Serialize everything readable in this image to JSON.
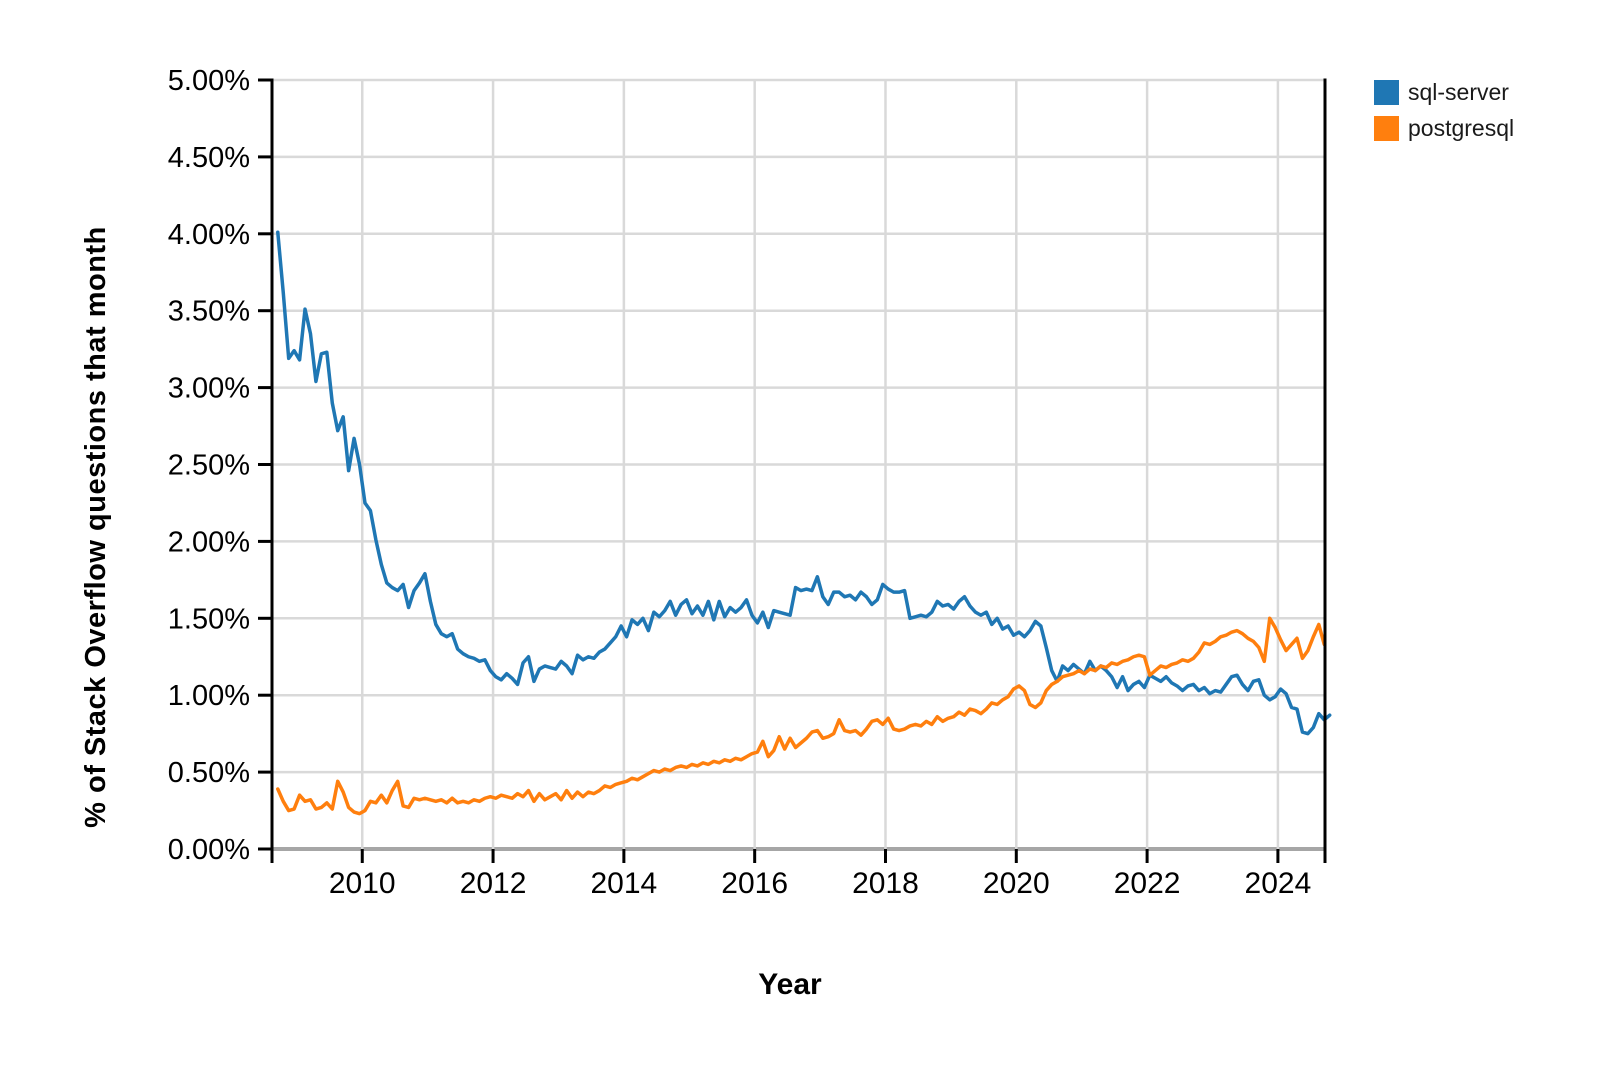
{
  "page": {
    "background": "#ffffff"
  },
  "colors": {
    "grid": "#d9d9d9",
    "zero_line": "#a6a6a6",
    "axis": "#000000",
    "tick_label": "#000000",
    "series_blue": "#1f77b4",
    "series_orange": "#ff7f0e"
  },
  "chart_data": {
    "type": "line",
    "title": "",
    "xlabel": "Year",
    "ylabel": "% of Stack Overflow questions that month",
    "legend_position": "outside-top-right",
    "grid": true,
    "x_start_month": "2008-09",
    "x_domain": [
      2008.62,
      2024.72
    ],
    "y_domain": [
      0,
      5
    ],
    "x_tick_values": [
      2010,
      2012,
      2014,
      2016,
      2018,
      2020,
      2022,
      2024
    ],
    "x_tick_labels": [
      "2010",
      "2012",
      "2014",
      "2016",
      "2018",
      "2020",
      "2022",
      "2024"
    ],
    "y_tick_values": [
      5.0,
      4.5,
      4.0,
      3.5,
      3.0,
      2.5,
      2.0,
      1.5,
      1.0,
      0.5,
      0.0
    ],
    "y_tick_labels": [
      "5.00%",
      "4.50%",
      "4.00%",
      "3.50%",
      "3.00%",
      "2.50%",
      "2.00%",
      "1.50%",
      "1.00%",
      "0.50%",
      "0.00%"
    ],
    "series": [
      {
        "name": "sql-server",
        "color": "#1f77b4",
        "values": [
          4.01,
          3.62,
          3.19,
          3.24,
          3.18,
          3.51,
          3.35,
          3.04,
          3.22,
          3.23,
          2.9,
          2.72,
          2.81,
          2.46,
          2.67,
          2.5,
          2.25,
          2.2,
          2.01,
          1.85,
          1.73,
          1.7,
          1.68,
          1.72,
          1.57,
          1.68,
          1.73,
          1.79,
          1.61,
          1.46,
          1.4,
          1.38,
          1.4,
          1.3,
          1.27,
          1.25,
          1.24,
          1.22,
          1.23,
          1.16,
          1.12,
          1.1,
          1.14,
          1.11,
          1.07,
          1.21,
          1.25,
          1.09,
          1.17,
          1.19,
          1.18,
          1.17,
          1.22,
          1.19,
          1.14,
          1.26,
          1.23,
          1.25,
          1.24,
          1.28,
          1.3,
          1.34,
          1.38,
          1.45,
          1.38,
          1.49,
          1.46,
          1.5,
          1.42,
          1.54,
          1.51,
          1.55,
          1.61,
          1.52,
          1.59,
          1.62,
          1.53,
          1.58,
          1.52,
          1.61,
          1.49,
          1.61,
          1.51,
          1.57,
          1.54,
          1.57,
          1.62,
          1.52,
          1.47,
          1.54,
          1.44,
          1.55,
          1.54,
          1.53,
          1.52,
          1.7,
          1.68,
          1.69,
          1.68,
          1.77,
          1.64,
          1.59,
          1.67,
          1.67,
          1.64,
          1.65,
          1.62,
          1.67,
          1.64,
          1.59,
          1.62,
          1.72,
          1.69,
          1.67,
          1.67,
          1.68,
          1.5,
          1.51,
          1.52,
          1.51,
          1.54,
          1.61,
          1.58,
          1.59,
          1.56,
          1.61,
          1.64,
          1.58,
          1.54,
          1.52,
          1.54,
          1.46,
          1.5,
          1.43,
          1.45,
          1.39,
          1.41,
          1.38,
          1.42,
          1.48,
          1.45,
          1.31,
          1.16,
          1.09,
          1.19,
          1.16,
          1.2,
          1.17,
          1.14,
          1.22,
          1.16,
          1.19,
          1.16,
          1.12,
          1.05,
          1.12,
          1.03,
          1.07,
          1.09,
          1.05,
          1.13,
          1.11,
          1.09,
          1.12,
          1.08,
          1.06,
          1.03,
          1.06,
          1.07,
          1.03,
          1.05,
          1.01,
          1.03,
          1.02,
          1.07,
          1.12,
          1.13,
          1.07,
          1.03,
          1.09,
          1.1,
          1.0,
          0.97,
          0.99,
          1.04,
          1.01,
          0.92,
          0.91,
          0.76,
          0.75,
          0.79,
          0.88,
          0.84,
          0.87
        ]
      },
      {
        "name": "postgresql",
        "color": "#ff7f0e",
        "values": [
          0.39,
          0.31,
          0.25,
          0.26,
          0.35,
          0.31,
          0.32,
          0.26,
          0.27,
          0.3,
          0.26,
          0.44,
          0.37,
          0.27,
          0.24,
          0.23,
          0.25,
          0.31,
          0.3,
          0.35,
          0.3,
          0.38,
          0.44,
          0.28,
          0.27,
          0.33,
          0.32,
          0.33,
          0.32,
          0.31,
          0.32,
          0.3,
          0.33,
          0.3,
          0.31,
          0.3,
          0.32,
          0.31,
          0.33,
          0.34,
          0.33,
          0.35,
          0.34,
          0.33,
          0.36,
          0.34,
          0.38,
          0.31,
          0.36,
          0.32,
          0.34,
          0.36,
          0.32,
          0.38,
          0.33,
          0.37,
          0.34,
          0.37,
          0.36,
          0.38,
          0.41,
          0.4,
          0.42,
          0.43,
          0.44,
          0.46,
          0.45,
          0.47,
          0.49,
          0.51,
          0.5,
          0.52,
          0.51,
          0.53,
          0.54,
          0.53,
          0.55,
          0.54,
          0.56,
          0.55,
          0.57,
          0.56,
          0.58,
          0.57,
          0.59,
          0.58,
          0.6,
          0.62,
          0.63,
          0.7,
          0.6,
          0.64,
          0.73,
          0.65,
          0.72,
          0.66,
          0.69,
          0.72,
          0.76,
          0.77,
          0.72,
          0.73,
          0.75,
          0.84,
          0.77,
          0.76,
          0.77,
          0.74,
          0.78,
          0.83,
          0.84,
          0.81,
          0.85,
          0.78,
          0.77,
          0.78,
          0.8,
          0.81,
          0.8,
          0.83,
          0.81,
          0.86,
          0.83,
          0.85,
          0.86,
          0.89,
          0.87,
          0.91,
          0.9,
          0.88,
          0.91,
          0.95,
          0.94,
          0.97,
          0.99,
          1.04,
          1.06,
          1.03,
          0.94,
          0.92,
          0.95,
          1.03,
          1.07,
          1.09,
          1.12,
          1.13,
          1.14,
          1.16,
          1.14,
          1.17,
          1.16,
          1.19,
          1.18,
          1.21,
          1.2,
          1.22,
          1.23,
          1.25,
          1.26,
          1.25,
          1.13,
          1.16,
          1.19,
          1.18,
          1.2,
          1.21,
          1.23,
          1.22,
          1.24,
          1.28,
          1.34,
          1.33,
          1.35,
          1.38,
          1.39,
          1.41,
          1.42,
          1.4,
          1.37,
          1.35,
          1.31,
          1.22,
          1.5,
          1.44,
          1.36,
          1.29,
          1.33,
          1.37,
          1.24,
          1.29,
          1.38,
          1.46,
          1.33
        ]
      }
    ]
  }
}
